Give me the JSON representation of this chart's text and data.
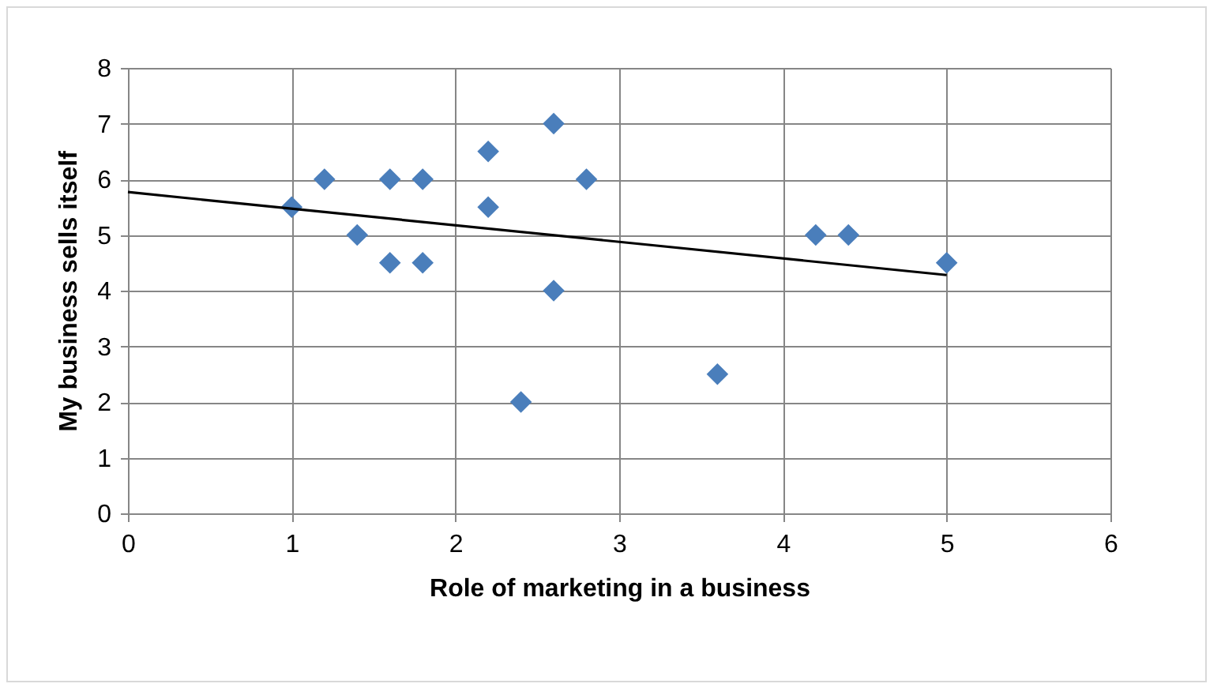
{
  "chart_data": {
    "type": "scatter",
    "xlabel": "Role of marketing in a business",
    "ylabel": "My business sells itself",
    "xlim": [
      0,
      6
    ],
    "xticks": [
      0,
      1,
      2,
      3,
      4,
      5,
      6
    ],
    "ylim": [
      0,
      8
    ],
    "yticks": [
      0,
      1,
      2,
      3,
      4,
      5,
      6,
      7,
      8
    ],
    "grid": true,
    "series": [
      {
        "type": "scatter",
        "marker": "diamond",
        "color": "#4a7ebb",
        "x": [
          1,
          1.2,
          1.4,
          1.6,
          1.6,
          1.8,
          1.8,
          2.2,
          2.2,
          2.4,
          2.6,
          2.6,
          2.8,
          3.6,
          4.2,
          4.4,
          5
        ],
        "values": [
          5.5,
          6,
          5,
          6,
          4.5,
          6,
          4.5,
          6.5,
          5.5,
          2,
          7,
          4,
          6,
          2.5,
          5,
          5,
          4.5
        ]
      },
      {
        "type": "line",
        "color": "#000000",
        "x": [
          0,
          5
        ],
        "values": [
          5.77,
          4.28
        ]
      }
    ]
  }
}
